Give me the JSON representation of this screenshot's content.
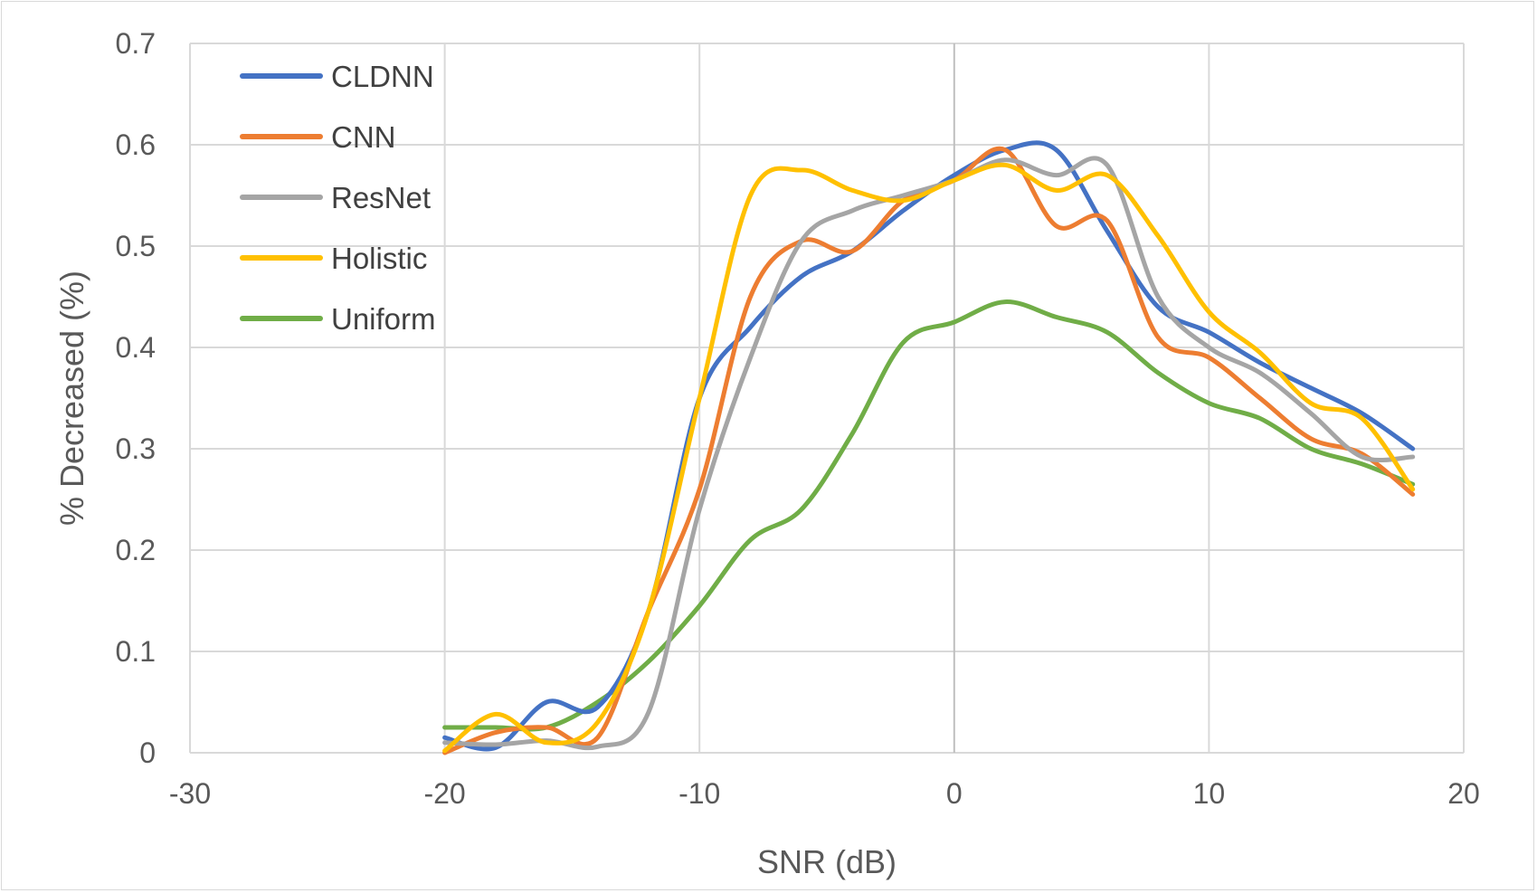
{
  "chart_data": {
    "type": "line",
    "title": "",
    "xlabel": "SNR (dB)",
    "ylabel": "% Decreased (%)",
    "xlim": [
      -30,
      20
    ],
    "ylim": [
      0,
      0.7
    ],
    "x_ticks": [
      -30,
      -20,
      -10,
      0,
      10,
      20
    ],
    "y_ticks": [
      0,
      0.1,
      0.2,
      0.3,
      0.4,
      0.5,
      0.6,
      0.7
    ],
    "x_tick_labels": [
      "-30",
      "-20",
      "-10",
      "0",
      "10",
      "20"
    ],
    "y_tick_labels": [
      "0",
      "0.1",
      "0.2",
      "0.3",
      "0.4",
      "0.5",
      "0.6",
      "0.7"
    ],
    "grid": true,
    "legend_position": "top-left",
    "x": [
      -20,
      -18,
      -16,
      -14,
      -12,
      -10,
      -8,
      -6,
      -4,
      -2,
      0,
      2,
      4,
      6,
      8,
      10,
      12,
      14,
      16,
      18
    ],
    "series": [
      {
        "name": "CLDNN",
        "color": "#4472C4",
        "values": [
          0.015,
          0.005,
          0.05,
          0.045,
          0.14,
          0.35,
          0.42,
          0.47,
          0.495,
          0.535,
          0.57,
          0.595,
          0.595,
          0.515,
          0.44,
          0.415,
          0.385,
          0.36,
          0.335,
          0.3
        ]
      },
      {
        "name": "CNN",
        "color": "#ED7D31",
        "values": [
          0.0,
          0.02,
          0.025,
          0.015,
          0.14,
          0.26,
          0.45,
          0.505,
          0.495,
          0.545,
          0.565,
          0.595,
          0.52,
          0.525,
          0.41,
          0.39,
          0.35,
          0.31,
          0.295,
          0.255
        ]
      },
      {
        "name": "ResNet",
        "color": "#A5A5A5",
        "values": [
          0.01,
          0.008,
          0.012,
          0.006,
          0.04,
          0.24,
          0.39,
          0.505,
          0.535,
          0.55,
          0.565,
          0.585,
          0.57,
          0.58,
          0.45,
          0.4,
          0.375,
          0.335,
          0.292,
          0.292
        ]
      },
      {
        "name": "Holistic",
        "color": "#FFC000",
        "values": [
          0.002,
          0.038,
          0.01,
          0.03,
          0.14,
          0.35,
          0.55,
          0.575,
          0.555,
          0.545,
          0.565,
          0.58,
          0.555,
          0.57,
          0.51,
          0.435,
          0.395,
          0.345,
          0.33,
          0.26
        ]
      },
      {
        "name": "Uniform",
        "color": "#70AD47",
        "values": [
          0.025,
          0.025,
          0.025,
          0.05,
          0.09,
          0.145,
          0.21,
          0.24,
          0.315,
          0.405,
          0.425,
          0.445,
          0.43,
          0.415,
          0.375,
          0.345,
          0.33,
          0.3,
          0.285,
          0.265
        ]
      }
    ]
  }
}
